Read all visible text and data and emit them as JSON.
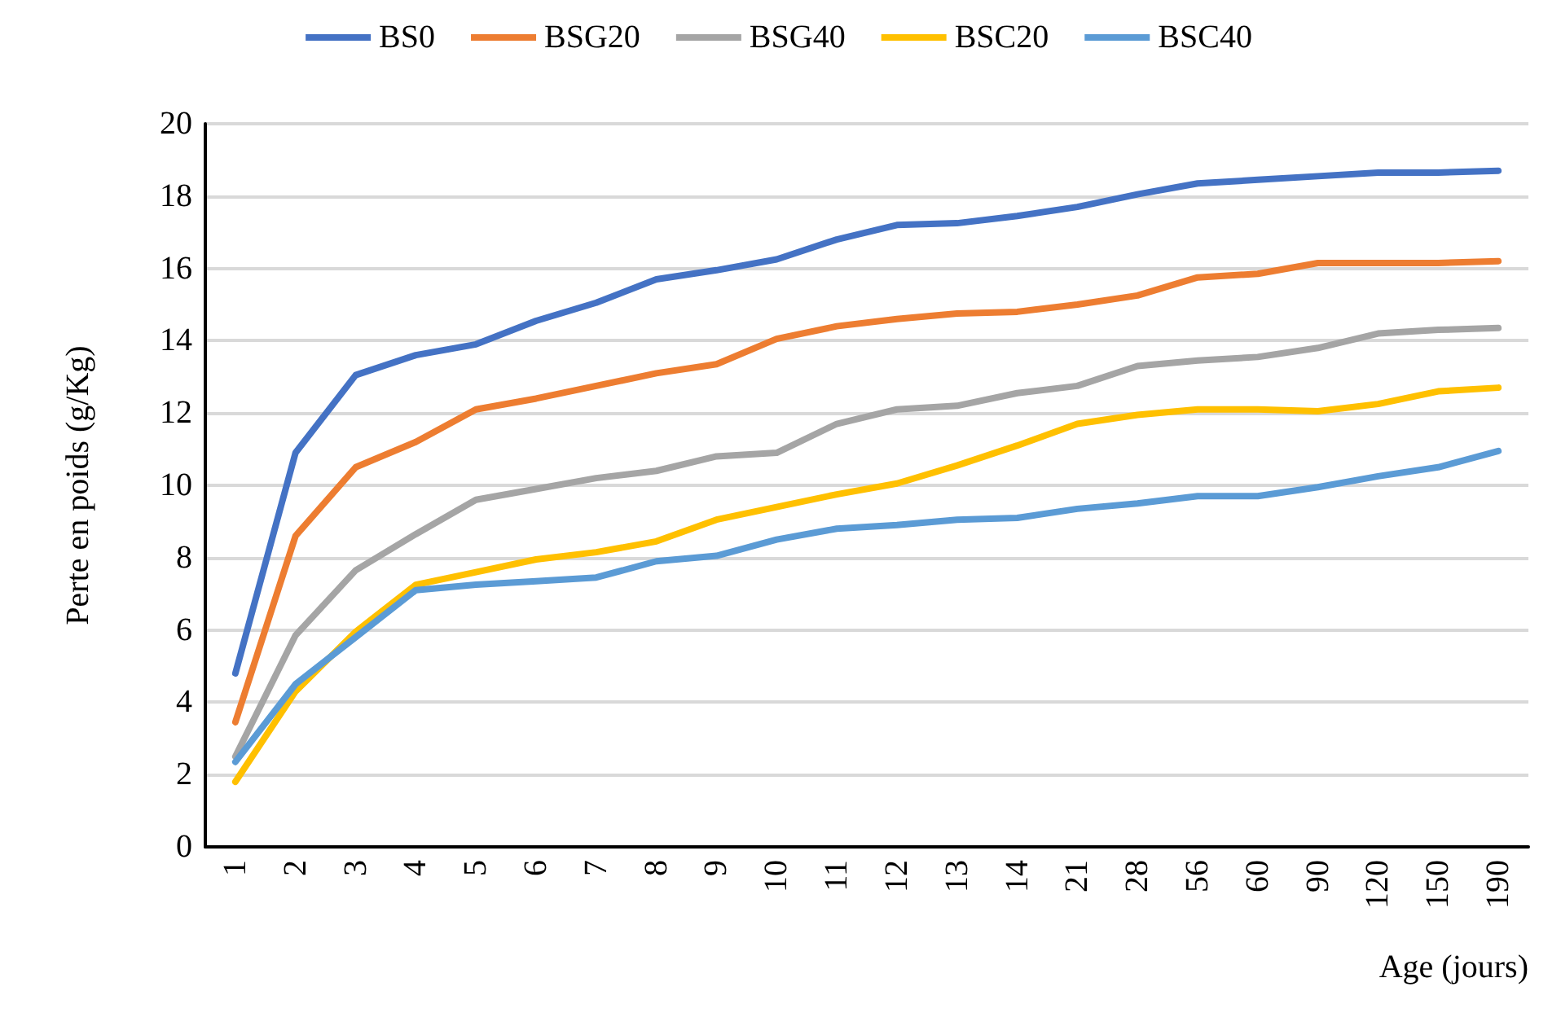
{
  "chart_data": {
    "type": "line",
    "xlabel": "Age (jours)",
    "ylabel": "Perte en poids (g/Kg)",
    "categories": [
      "1",
      "2",
      "3",
      "4",
      "5",
      "6",
      "7",
      "8",
      "9",
      "10",
      "11",
      "12",
      "13",
      "14",
      "21",
      "28",
      "56",
      "60",
      "90",
      "120",
      "150",
      "190"
    ],
    "series": [
      {
        "name": "BS0",
        "color": "#4472c4",
        "values": [
          4.8,
          10.9,
          13.05,
          13.6,
          13.9,
          14.55,
          15.05,
          15.7,
          15.95,
          16.25,
          16.8,
          17.2,
          17.25,
          17.45,
          17.7,
          18.05,
          18.35,
          18.45,
          18.55,
          18.65,
          18.65,
          18.7
        ]
      },
      {
        "name": "BSG20",
        "color": "#ed7d31",
        "values": [
          3.45,
          8.6,
          10.5,
          11.2,
          12.1,
          12.4,
          12.75,
          13.1,
          13.35,
          14.05,
          14.4,
          14.6,
          14.75,
          14.8,
          15.0,
          15.25,
          15.75,
          15.85,
          16.15,
          16.15,
          16.15,
          16.2
        ]
      },
      {
        "name": "BSG40",
        "color": "#a5a5a5",
        "values": [
          2.5,
          5.85,
          7.65,
          8.65,
          9.6,
          9.9,
          10.2,
          10.4,
          10.8,
          10.9,
          11.7,
          12.1,
          12.2,
          12.55,
          12.75,
          13.3,
          13.45,
          13.55,
          13.8,
          14.2,
          14.3,
          14.35
        ]
      },
      {
        "name": "BSC20",
        "color": "#ffc000",
        "values": [
          1.8,
          4.3,
          5.95,
          7.25,
          7.6,
          7.95,
          8.15,
          8.45,
          9.05,
          9.4,
          9.75,
          10.05,
          10.55,
          11.1,
          11.7,
          11.95,
          12.1,
          12.1,
          12.05,
          12.25,
          12.6,
          12.7
        ]
      },
      {
        "name": "BSC40",
        "color": "#5b9bd5",
        "values": [
          2.35,
          4.5,
          5.8,
          7.1,
          7.25,
          7.35,
          7.45,
          7.9,
          8.05,
          8.5,
          8.8,
          8.9,
          9.05,
          9.1,
          9.35,
          9.5,
          9.7,
          9.7,
          9.95,
          10.25,
          10.5,
          10.95
        ]
      }
    ],
    "ylim": [
      0,
      20
    ],
    "yticks": [
      0,
      2,
      4,
      6,
      8,
      10,
      12,
      14,
      16,
      18,
      20
    ],
    "grid": "y",
    "legend": "top",
    "marker": "none",
    "line_style": "solid"
  }
}
